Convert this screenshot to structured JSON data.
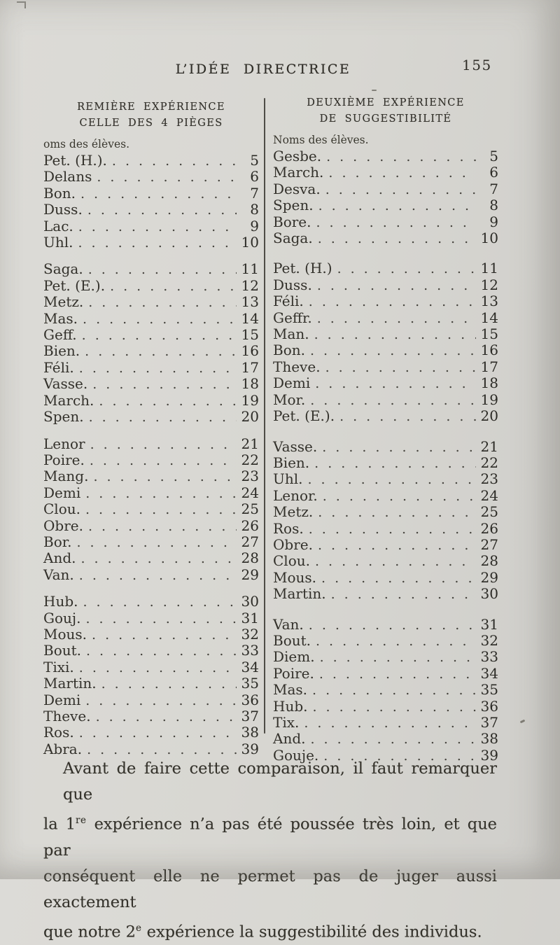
{
  "page": {
    "header_title": "L’IDÉE DIRECTRICE",
    "page_number": "155"
  },
  "left_column": {
    "heading_line1": "REMIÈRE EXPÉRIENCE",
    "heading_line2": "CELLE DES 4 PIÈGES",
    "subheading": "oms des élèves.",
    "groups": [
      {
        "rows": [
          {
            "name": "Pet. (H.).",
            "value": "5"
          },
          {
            "name": "Delans",
            "value": "6"
          },
          {
            "name": "Bon.",
            "value": "7"
          },
          {
            "name": "Duss.",
            "value": "8"
          },
          {
            "name": "Lac.",
            "value": "9"
          },
          {
            "name": "Uhl.",
            "value": "10"
          }
        ]
      },
      {
        "rows": [
          {
            "name": "Saga.",
            "value": "11"
          },
          {
            "name": "Pet. (E.).",
            "value": "12"
          },
          {
            "name": "Metz.",
            "value": "13"
          },
          {
            "name": "Mas.",
            "value": "14"
          },
          {
            "name": "Geff.",
            "value": "15"
          },
          {
            "name": "Bien.",
            "value": "16"
          },
          {
            "name": "Féli.",
            "value": "17"
          },
          {
            "name": "Vasse.",
            "value": "18"
          },
          {
            "name": "March.",
            "value": "19"
          },
          {
            "name": "Spen.",
            "value": "20"
          }
        ]
      },
      {
        "rows": [
          {
            "name": "Lenor",
            "value": "21"
          },
          {
            "name": "Poire.",
            "value": "22"
          },
          {
            "name": "Mang.",
            "value": "23"
          },
          {
            "name": "Demi",
            "value": "24"
          },
          {
            "name": "Clou.",
            "value": "25"
          },
          {
            "name": "Obre.",
            "value": "26"
          },
          {
            "name": "Bor.",
            "value": "27"
          },
          {
            "name": "And.",
            "value": "28"
          },
          {
            "name": "Van.",
            "value": "29"
          }
        ]
      },
      {
        "rows": [
          {
            "name": "Hub.",
            "value": "30"
          },
          {
            "name": "Gouj.",
            "value": "31"
          },
          {
            "name": "Mous.",
            "value": "32"
          },
          {
            "name": "Bout.",
            "value": "33"
          },
          {
            "name": "Tixi.",
            "value": "34"
          },
          {
            "name": "Martin.",
            "value": "35"
          },
          {
            "name": "Demi",
            "value": "36"
          },
          {
            "name": "Theve.",
            "value": "37"
          },
          {
            "name": "Ros.",
            "value": "38"
          },
          {
            "name": "Abra.",
            "value": "39"
          }
        ]
      }
    ]
  },
  "right_column": {
    "heading_line1": "DEUXIÈME EXPÉRIENCE",
    "heading_line2": "DE SUGGESTIBILITÉ",
    "subheading": "Noms des élèves.",
    "groups": [
      {
        "rows": [
          {
            "name": "Gesbe.",
            "value": "5"
          },
          {
            "name": "March.",
            "value": "6"
          },
          {
            "name": "Desva.",
            "value": "7"
          },
          {
            "name": "Spen.",
            "value": "8"
          },
          {
            "name": "Bore.",
            "value": "9"
          },
          {
            "name": "Saga.",
            "value": "10"
          }
        ]
      },
      {
        "rows": [
          {
            "name": "Pet. (H.)",
            "value": "11"
          },
          {
            "name": "Duss.",
            "value": "12"
          },
          {
            "name": "Féli.",
            "value": "13"
          },
          {
            "name": "Geffr.",
            "value": "14"
          },
          {
            "name": "Man.",
            "value": "15"
          },
          {
            "name": "Bon.",
            "value": "16"
          },
          {
            "name": "Theve.",
            "value": "17"
          },
          {
            "name": "Demi",
            "value": "18"
          },
          {
            "name": "Mor.",
            "value": "19"
          },
          {
            "name": "Pet. (E.).",
            "value": "20"
          }
        ]
      },
      {
        "rows": [
          {
            "name": "Vasse.",
            "value": "21"
          },
          {
            "name": "Bien.",
            "value": "22"
          },
          {
            "name": "Uhl.",
            "value": "23"
          },
          {
            "name": "Lenor.",
            "value": "24"
          },
          {
            "name": "Metz.",
            "value": "25"
          },
          {
            "name": "Ros.",
            "value": "26"
          },
          {
            "name": "Obre.",
            "value": "27"
          },
          {
            "name": "Clou.",
            "value": "28"
          },
          {
            "name": "Mous.",
            "value": "29"
          },
          {
            "name": "Martin.",
            "value": "30"
          }
        ]
      },
      {
        "rows": [
          {
            "name": "Van.",
            "value": "31"
          },
          {
            "name": "Bout.",
            "value": "32"
          },
          {
            "name": "Diem.",
            "value": "33"
          },
          {
            "name": "Poire.",
            "value": "34"
          },
          {
            "name": "Mas.",
            "value": "35"
          },
          {
            "name": "Hub.",
            "value": "36"
          },
          {
            "name": "Tix.",
            "value": "37"
          },
          {
            "name": "And.",
            "value": "38"
          },
          {
            "name": "Gouje.",
            "value": "39"
          }
        ]
      }
    ]
  },
  "paragraph": {
    "line1": "Avant de faire cette comparaison, il faut remarquer que",
    "line2_pre": "la 1",
    "line2_sup": "re",
    "line2_post": " expérience n’a pas été poussée très loin, et que par",
    "line3": "conséquent elle ne permet pas de juger aussi exactement",
    "line4_pre": "que notre 2",
    "line4_sup": "e",
    "line4_post": " expérience la suggestibilité des individus."
  }
}
